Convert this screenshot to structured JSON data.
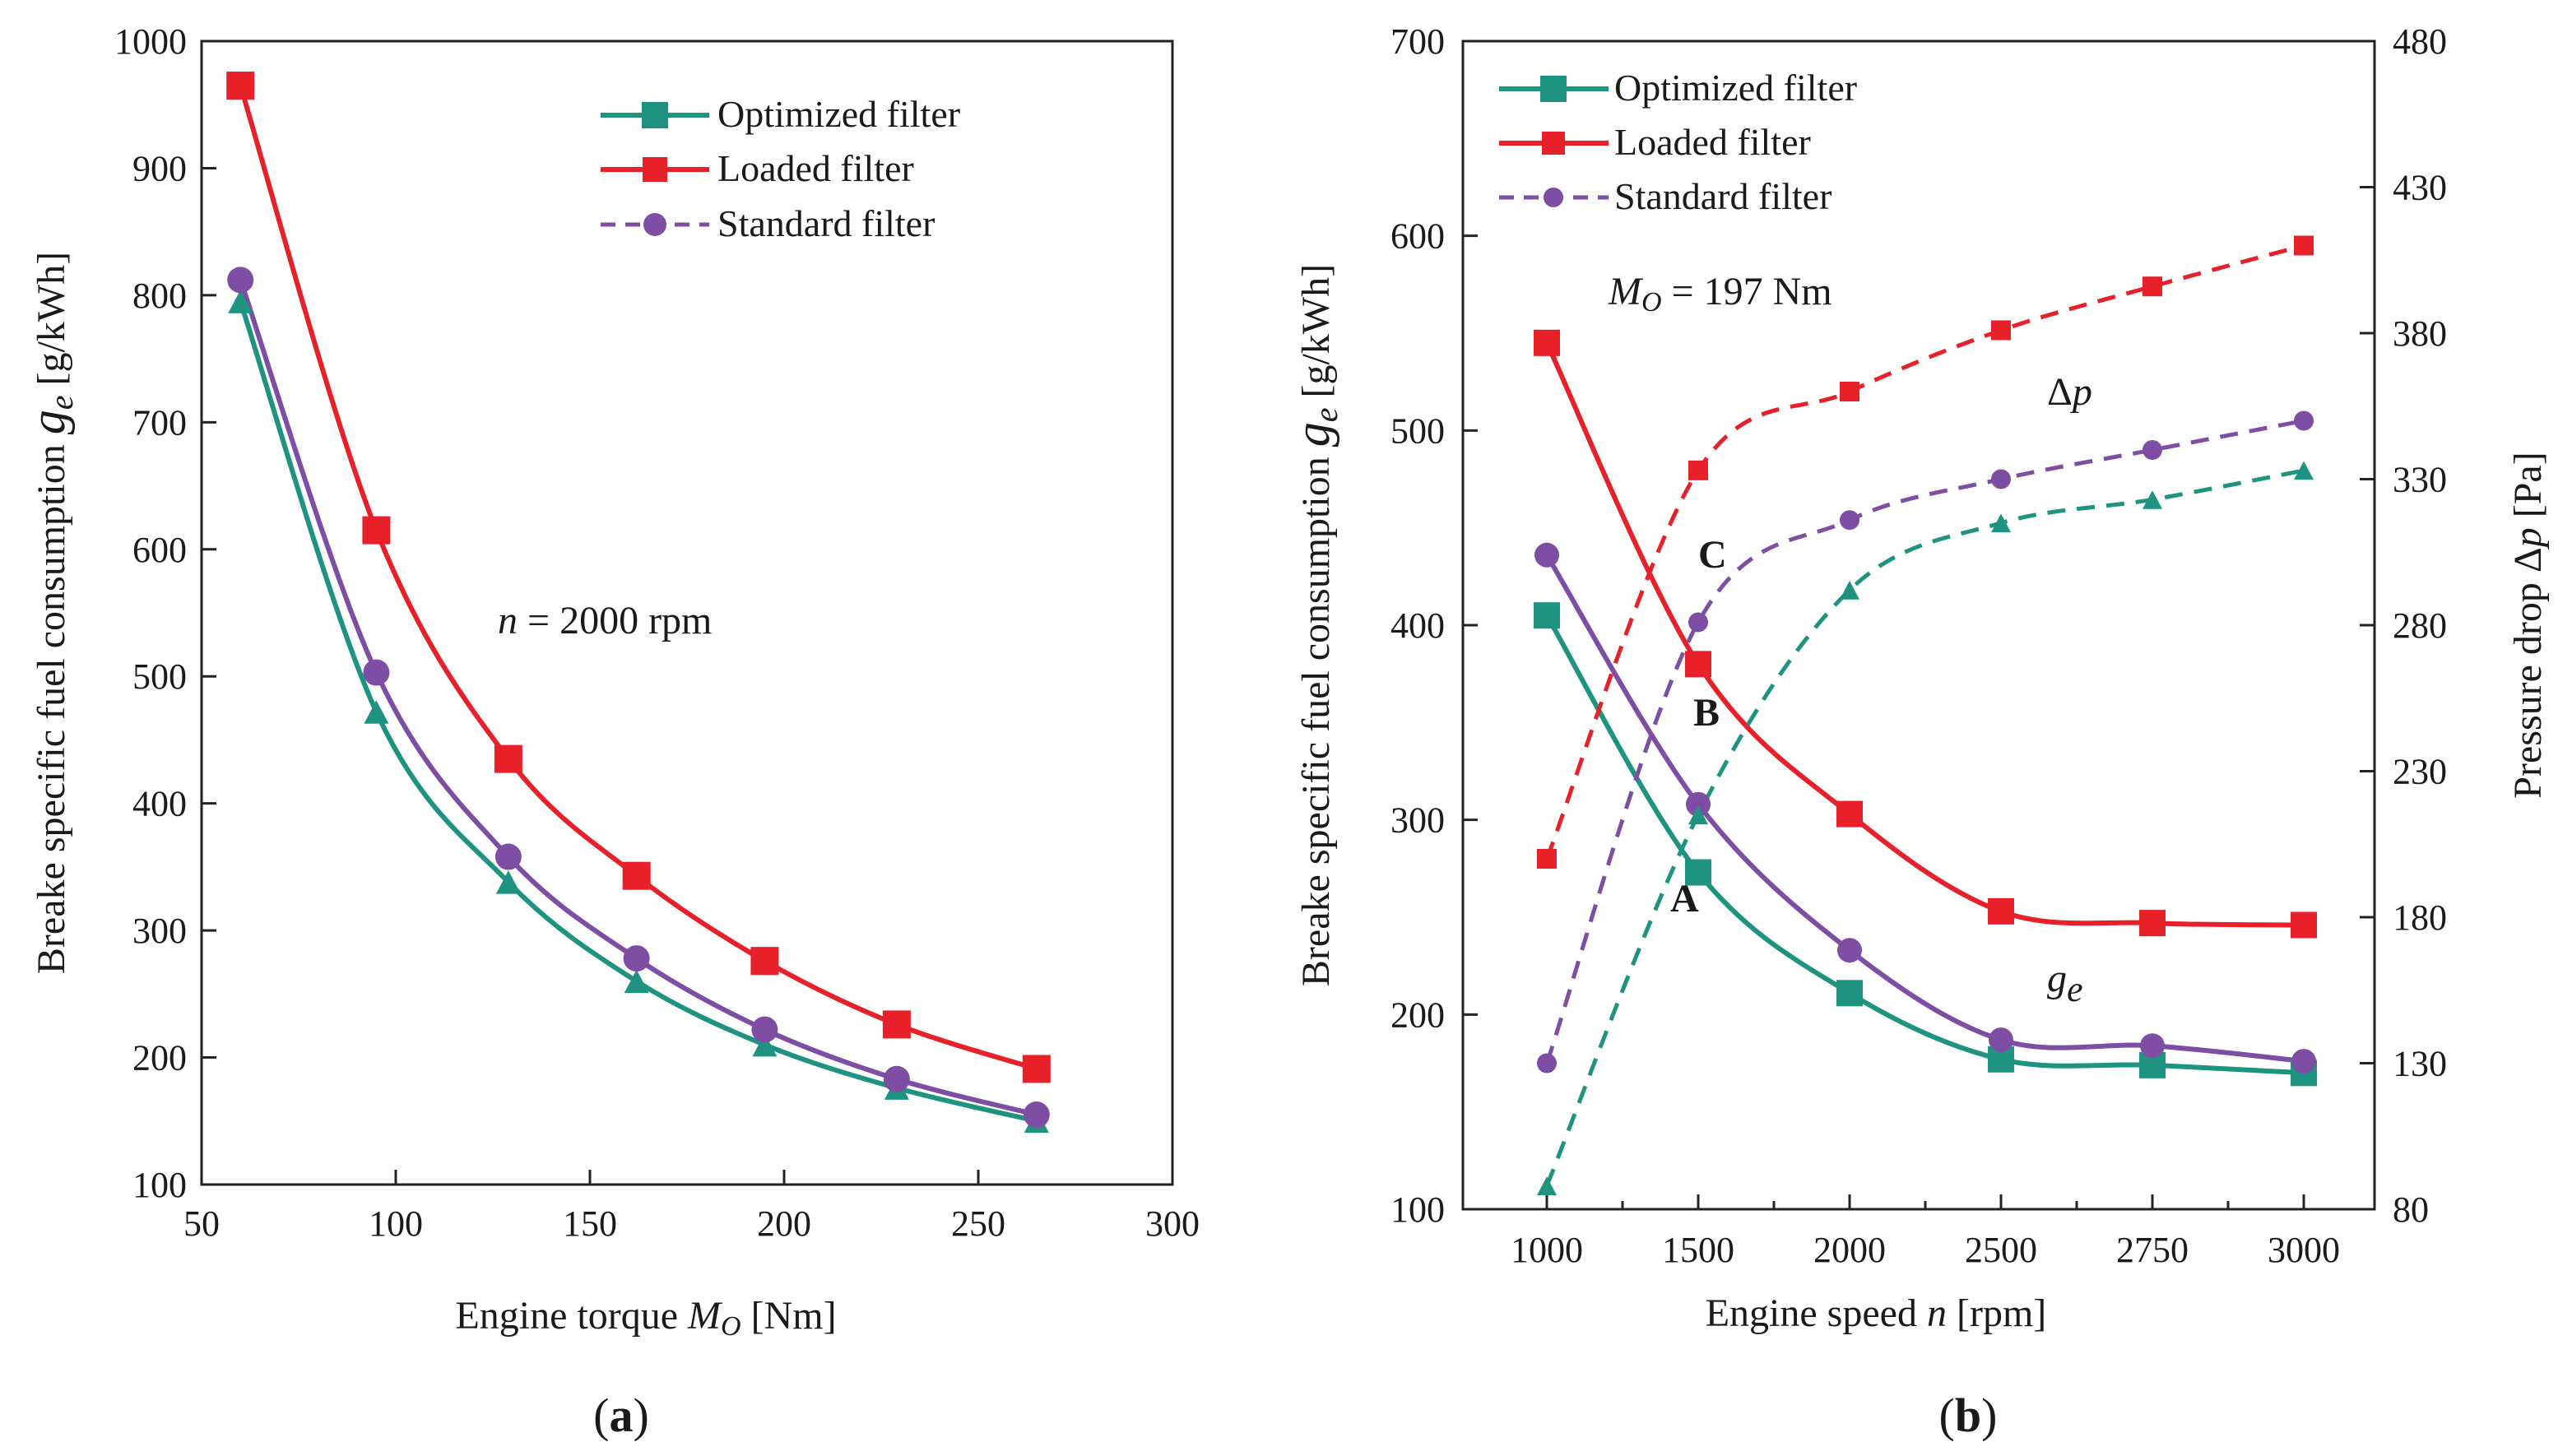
{
  "colors": {
    "optimized": "#1e9480",
    "loaded": "#e8202a",
    "standard": "#7d4ea3",
    "axis": "#222222"
  },
  "chart_data": [
    {
      "type": "line",
      "caption": "(a)",
      "caption_letter": "a",
      "xlabel": "Engine torque M_O [Nm]",
      "xlabel_parts": {
        "pre": "Engine torque ",
        "var": "M",
        "sub": "O",
        "post": " [Nm]"
      },
      "ylabel": "Breake specific fuel consumption g_e [g/kWh]",
      "ylabel_parts": {
        "pre": "Breake specific fuel consumption ",
        "var": "g",
        "sub": "e",
        "post": " [g/kWh]"
      },
      "xlim": [
        50,
        300
      ],
      "ylim": [
        100,
        1000
      ],
      "xticks": [
        50,
        100,
        150,
        200,
        250,
        300
      ],
      "yticks": [
        100,
        200,
        300,
        400,
        500,
        600,
        700,
        800,
        900,
        1000
      ],
      "annotation": {
        "var": "n",
        "text": " = 2000 rpm"
      },
      "legend": [
        "Optimized filter",
        "Loaded filter",
        "Standard filter"
      ],
      "series": [
        {
          "name": "Optimized filter",
          "marker": "triangle",
          "x": [
            60,
            95,
            129,
            162,
            195,
            229,
            265
          ],
          "y": [
            795,
            472,
            338,
            260,
            210,
            176,
            150
          ]
        },
        {
          "name": "Loaded filter",
          "marker": "square",
          "x": [
            60,
            95,
            129,
            162,
            195,
            229,
            265
          ],
          "y": [
            965,
            615,
            435,
            343,
            276,
            226,
            191
          ]
        },
        {
          "name": "Standard filter",
          "marker": "circle",
          "x": [
            60,
            95,
            129,
            162,
            195,
            229,
            265
          ],
          "y": [
            812,
            503,
            358,
            278,
            222,
            183,
            155
          ]
        }
      ]
    },
    {
      "type": "line",
      "caption": "(b)",
      "caption_letter": "b",
      "xlabel": "Engine speed n [rpm]",
      "xlabel_parts": {
        "pre": "Engine speed ",
        "var": "n",
        "post": " [rpm]"
      },
      "ylabel": "Breake specific fuel consumption g_e [g/kWh]",
      "ylabel_parts": {
        "pre": "Breake specific fuel consumption ",
        "var": "g",
        "sub": "e",
        "post": " [g/kWh]"
      },
      "y2label": "Pressure drop Δp [Pa]",
      "y2label_parts": {
        "pre": "Pressure drop  Δ",
        "var": "p",
        "post": " [Pa]"
      },
      "xticks": [
        "1000",
        "1500",
        "2000",
        "2500",
        "2750",
        "3000"
      ],
      "ylim": [
        100,
        700
      ],
      "yticks": [
        100,
        200,
        300,
        400,
        500,
        600,
        700
      ],
      "y2lim": [
        80,
        480
      ],
      "y2ticks": [
        80,
        130,
        180,
        230,
        280,
        330,
        380,
        430,
        480
      ],
      "annotations": {
        "mo": {
          "var": "M",
          "sub": "O",
          "text": " = 197 Nm"
        },
        "dp": {
          "text": "Δ",
          "var": "p"
        },
        "ge": {
          "var": "g",
          "sub": "e"
        },
        "A": "A",
        "B": "B",
        "C": "C"
      },
      "legend": [
        "Optimized filter",
        "Loaded filter",
        "Standard filter"
      ],
      "series": [
        {
          "name": "Optimized filter",
          "quantity": "ge",
          "axis": "left",
          "marker": "square",
          "y": [
            405,
            273,
            211,
            177,
            174,
            170
          ]
        },
        {
          "name": "Loaded filter",
          "quantity": "ge",
          "axis": "left",
          "marker": "square",
          "y": [
            545,
            380,
            303,
            253,
            247,
            246
          ]
        },
        {
          "name": "Standard filter",
          "quantity": "ge",
          "axis": "left",
          "marker": "circle",
          "y": [
            436,
            308,
            233,
            187,
            184,
            176
          ]
        },
        {
          "name": "Optimized filter",
          "quantity": "dp",
          "axis": "right",
          "marker": "triangle",
          "y": [
            88,
            215,
            292,
            315,
            323,
            333
          ]
        },
        {
          "name": "Loaded filter",
          "quantity": "dp",
          "axis": "right",
          "marker": "square",
          "y": [
            200,
            333,
            360,
            381,
            396,
            410
          ]
        },
        {
          "name": "Standard filter",
          "quantity": "dp",
          "axis": "right",
          "marker": "circle",
          "y": [
            130,
            281,
            316,
            330,
            340,
            350
          ]
        }
      ]
    }
  ]
}
